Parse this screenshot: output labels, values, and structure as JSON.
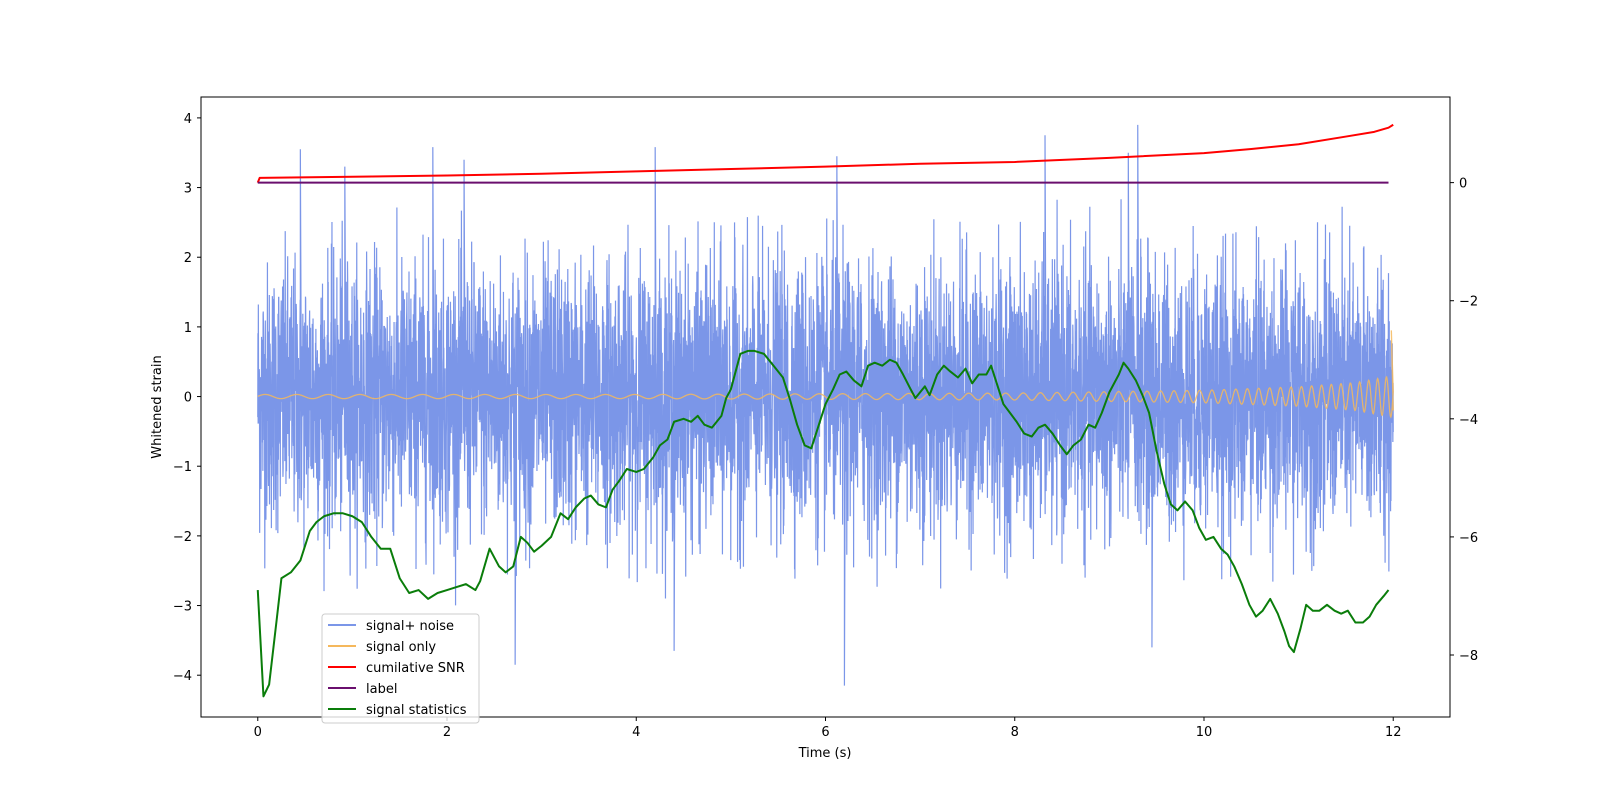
{
  "chart_data": {
    "type": "line",
    "xlabel": "Time (s)",
    "ylabel": "Whitened strain",
    "xlim": [
      -0.6,
      12.6
    ],
    "ylim": [
      -4.6,
      4.3
    ],
    "y2lim": [
      -9.05,
      1.45
    ],
    "x_ticks": [
      0,
      2,
      4,
      6,
      8,
      10,
      12
    ],
    "y_ticks": [
      -4,
      -3,
      -2,
      -1,
      0,
      1,
      2,
      3,
      4
    ],
    "y2_ticks": [
      -8,
      -6,
      -4,
      -2,
      0
    ],
    "legend_position": "lower-left",
    "series": [
      {
        "name": "signal+ noise",
        "color": "#7b96e8",
        "axis": "left",
        "description_values": {
          "approx_std": 1.0,
          "typical_max": 2.5,
          "peak_max": 3.9,
          "peak_min": -4.15
        },
        "spikes": [
          [
            0.45,
            3.55
          ],
          [
            0.92,
            3.3
          ],
          [
            1.85,
            3.58
          ],
          [
            2.18,
            3.4
          ],
          [
            4.2,
            3.58
          ],
          [
            6.12,
            3.45
          ],
          [
            8.32,
            3.75
          ],
          [
            9.3,
            3.9
          ],
          [
            9.2,
            3.5
          ],
          [
            2.72,
            -3.85
          ],
          [
            6.2,
            -4.15
          ],
          [
            4.4,
            -3.65
          ],
          [
            9.45,
            -3.6
          ]
        ]
      },
      {
        "name": "signal only",
        "color": "#f5b85c",
        "axis": "left",
        "amplitude_points": [
          [
            0.0,
            0.03
          ],
          [
            4.0,
            0.03
          ],
          [
            8.0,
            0.05
          ],
          [
            10.0,
            0.09
          ],
          [
            11.0,
            0.14
          ],
          [
            11.6,
            0.2
          ],
          [
            12.0,
            0.3
          ]
        ],
        "end_values": [
          [
            11.98,
            0.95
          ],
          [
            12.0,
            -0.2
          ]
        ]
      },
      {
        "name": "cumilative SNR",
        "color": "#ff0000",
        "axis": "right",
        "points": [
          [
            0.0,
            0.0
          ],
          [
            0.02,
            0.08
          ],
          [
            1.0,
            0.1
          ],
          [
            2.0,
            0.12
          ],
          [
            3.0,
            0.15
          ],
          [
            4.0,
            0.19
          ],
          [
            5.0,
            0.23
          ],
          [
            6.0,
            0.27
          ],
          [
            7.0,
            0.32
          ],
          [
            8.0,
            0.35
          ],
          [
            9.0,
            0.42
          ],
          [
            10.0,
            0.5
          ],
          [
            10.5,
            0.57
          ],
          [
            11.0,
            0.65
          ],
          [
            11.5,
            0.78
          ],
          [
            11.8,
            0.86
          ],
          [
            11.95,
            0.93
          ],
          [
            12.0,
            0.98
          ]
        ]
      },
      {
        "name": "label",
        "color": "#6a0f6e",
        "axis": "right",
        "points": [
          [
            0.0,
            0.0
          ],
          [
            11.95,
            0.0
          ]
        ]
      },
      {
        "name": "signal statistics",
        "color": "#0a7d0a",
        "axis": "right",
        "points": [
          [
            0.0,
            -6.9
          ],
          [
            0.06,
            -8.7
          ],
          [
            0.12,
            -8.5
          ],
          [
            0.2,
            -7.4
          ],
          [
            0.25,
            -6.7
          ],
          [
            0.35,
            -6.6
          ],
          [
            0.45,
            -6.4
          ],
          [
            0.55,
            -5.9
          ],
          [
            0.62,
            -5.75
          ],
          [
            0.7,
            -5.65
          ],
          [
            0.8,
            -5.6
          ],
          [
            0.9,
            -5.6
          ],
          [
            1.0,
            -5.65
          ],
          [
            1.1,
            -5.75
          ],
          [
            1.2,
            -6.0
          ],
          [
            1.3,
            -6.2
          ],
          [
            1.4,
            -6.2
          ],
          [
            1.5,
            -6.7
          ],
          [
            1.6,
            -6.95
          ],
          [
            1.7,
            -6.9
          ],
          [
            1.8,
            -7.05
          ],
          [
            1.9,
            -6.95
          ],
          [
            2.0,
            -6.9
          ],
          [
            2.1,
            -6.85
          ],
          [
            2.2,
            -6.8
          ],
          [
            2.3,
            -6.9
          ],
          [
            2.35,
            -6.75
          ],
          [
            2.45,
            -6.2
          ],
          [
            2.55,
            -6.5
          ],
          [
            2.62,
            -6.6
          ],
          [
            2.7,
            -6.5
          ],
          [
            2.78,
            -6.0
          ],
          [
            2.85,
            -6.1
          ],
          [
            2.92,
            -6.25
          ],
          [
            3.0,
            -6.15
          ],
          [
            3.1,
            -6.0
          ],
          [
            3.2,
            -5.6
          ],
          [
            3.28,
            -5.7
          ],
          [
            3.36,
            -5.5
          ],
          [
            3.45,
            -5.35
          ],
          [
            3.52,
            -5.3
          ],
          [
            3.6,
            -5.45
          ],
          [
            3.68,
            -5.5
          ],
          [
            3.75,
            -5.2
          ],
          [
            3.82,
            -5.05
          ],
          [
            3.9,
            -4.85
          ],
          [
            4.0,
            -4.9
          ],
          [
            4.08,
            -4.85
          ],
          [
            4.18,
            -4.65
          ],
          [
            4.25,
            -4.45
          ],
          [
            4.33,
            -4.35
          ],
          [
            4.4,
            -4.05
          ],
          [
            4.5,
            -4.0
          ],
          [
            4.58,
            -4.05
          ],
          [
            4.65,
            -3.95
          ],
          [
            4.72,
            -4.1
          ],
          [
            4.8,
            -4.15
          ],
          [
            4.9,
            -3.95
          ],
          [
            4.95,
            -3.65
          ],
          [
            5.0,
            -3.5
          ],
          [
            5.05,
            -3.2
          ],
          [
            5.1,
            -2.9
          ],
          [
            5.18,
            -2.85
          ],
          [
            5.25,
            -2.85
          ],
          [
            5.35,
            -2.9
          ],
          [
            5.45,
            -3.1
          ],
          [
            5.55,
            -3.3
          ],
          [
            5.62,
            -3.65
          ],
          [
            5.7,
            -4.1
          ],
          [
            5.78,
            -4.45
          ],
          [
            5.85,
            -4.5
          ],
          [
            5.92,
            -4.15
          ],
          [
            6.0,
            -3.75
          ],
          [
            6.08,
            -3.5
          ],
          [
            6.15,
            -3.25
          ],
          [
            6.22,
            -3.2
          ],
          [
            6.3,
            -3.35
          ],
          [
            6.38,
            -3.45
          ],
          [
            6.45,
            -3.1
          ],
          [
            6.52,
            -3.05
          ],
          [
            6.6,
            -3.1
          ],
          [
            6.68,
            -3.0
          ],
          [
            6.75,
            -3.05
          ],
          [
            6.82,
            -3.25
          ],
          [
            6.9,
            -3.5
          ],
          [
            6.95,
            -3.65
          ],
          [
            7.0,
            -3.55
          ],
          [
            7.05,
            -3.45
          ],
          [
            7.1,
            -3.6
          ],
          [
            7.18,
            -3.25
          ],
          [
            7.25,
            -3.1
          ],
          [
            7.32,
            -3.2
          ],
          [
            7.4,
            -3.3
          ],
          [
            7.48,
            -3.15
          ],
          [
            7.55,
            -3.4
          ],
          [
            7.62,
            -3.25
          ],
          [
            7.7,
            -3.25
          ],
          [
            7.75,
            -3.1
          ],
          [
            7.82,
            -3.45
          ],
          [
            7.88,
            -3.75
          ],
          [
            7.95,
            -3.9
          ],
          [
            8.02,
            -4.05
          ],
          [
            8.1,
            -4.25
          ],
          [
            8.18,
            -4.3
          ],
          [
            8.25,
            -4.15
          ],
          [
            8.32,
            -4.1
          ],
          [
            8.4,
            -4.25
          ],
          [
            8.48,
            -4.45
          ],
          [
            8.55,
            -4.6
          ],
          [
            8.62,
            -4.45
          ],
          [
            8.7,
            -4.35
          ],
          [
            8.78,
            -4.1
          ],
          [
            8.85,
            -4.15
          ],
          [
            8.92,
            -3.9
          ],
          [
            9.0,
            -3.55
          ],
          [
            9.05,
            -3.4
          ],
          [
            9.1,
            -3.25
          ],
          [
            9.15,
            -3.05
          ],
          [
            9.2,
            -3.15
          ],
          [
            9.28,
            -3.35
          ],
          [
            9.35,
            -3.6
          ],
          [
            9.42,
            -3.9
          ],
          [
            9.5,
            -4.55
          ],
          [
            9.58,
            -5.1
          ],
          [
            9.65,
            -5.45
          ],
          [
            9.72,
            -5.55
          ],
          [
            9.8,
            -5.4
          ],
          [
            9.88,
            -5.55
          ],
          [
            9.95,
            -5.85
          ],
          [
            10.02,
            -6.05
          ],
          [
            10.1,
            -6.0
          ],
          [
            10.18,
            -6.2
          ],
          [
            10.25,
            -6.3
          ],
          [
            10.32,
            -6.5
          ],
          [
            10.4,
            -6.8
          ],
          [
            10.48,
            -7.15
          ],
          [
            10.55,
            -7.35
          ],
          [
            10.62,
            -7.25
          ],
          [
            10.7,
            -7.05
          ],
          [
            10.78,
            -7.3
          ],
          [
            10.85,
            -7.6
          ],
          [
            10.9,
            -7.85
          ],
          [
            10.95,
            -7.95
          ],
          [
            11.02,
            -7.55
          ],
          [
            11.08,
            -7.15
          ],
          [
            11.15,
            -7.25
          ],
          [
            11.22,
            -7.25
          ],
          [
            11.3,
            -7.15
          ],
          [
            11.38,
            -7.25
          ],
          [
            11.45,
            -7.3
          ],
          [
            11.52,
            -7.25
          ],
          [
            11.6,
            -7.45
          ],
          [
            11.68,
            -7.45
          ],
          [
            11.75,
            -7.35
          ],
          [
            11.82,
            -7.15
          ],
          [
            11.9,
            -7.0
          ],
          [
            11.95,
            -6.9
          ]
        ]
      }
    ]
  }
}
